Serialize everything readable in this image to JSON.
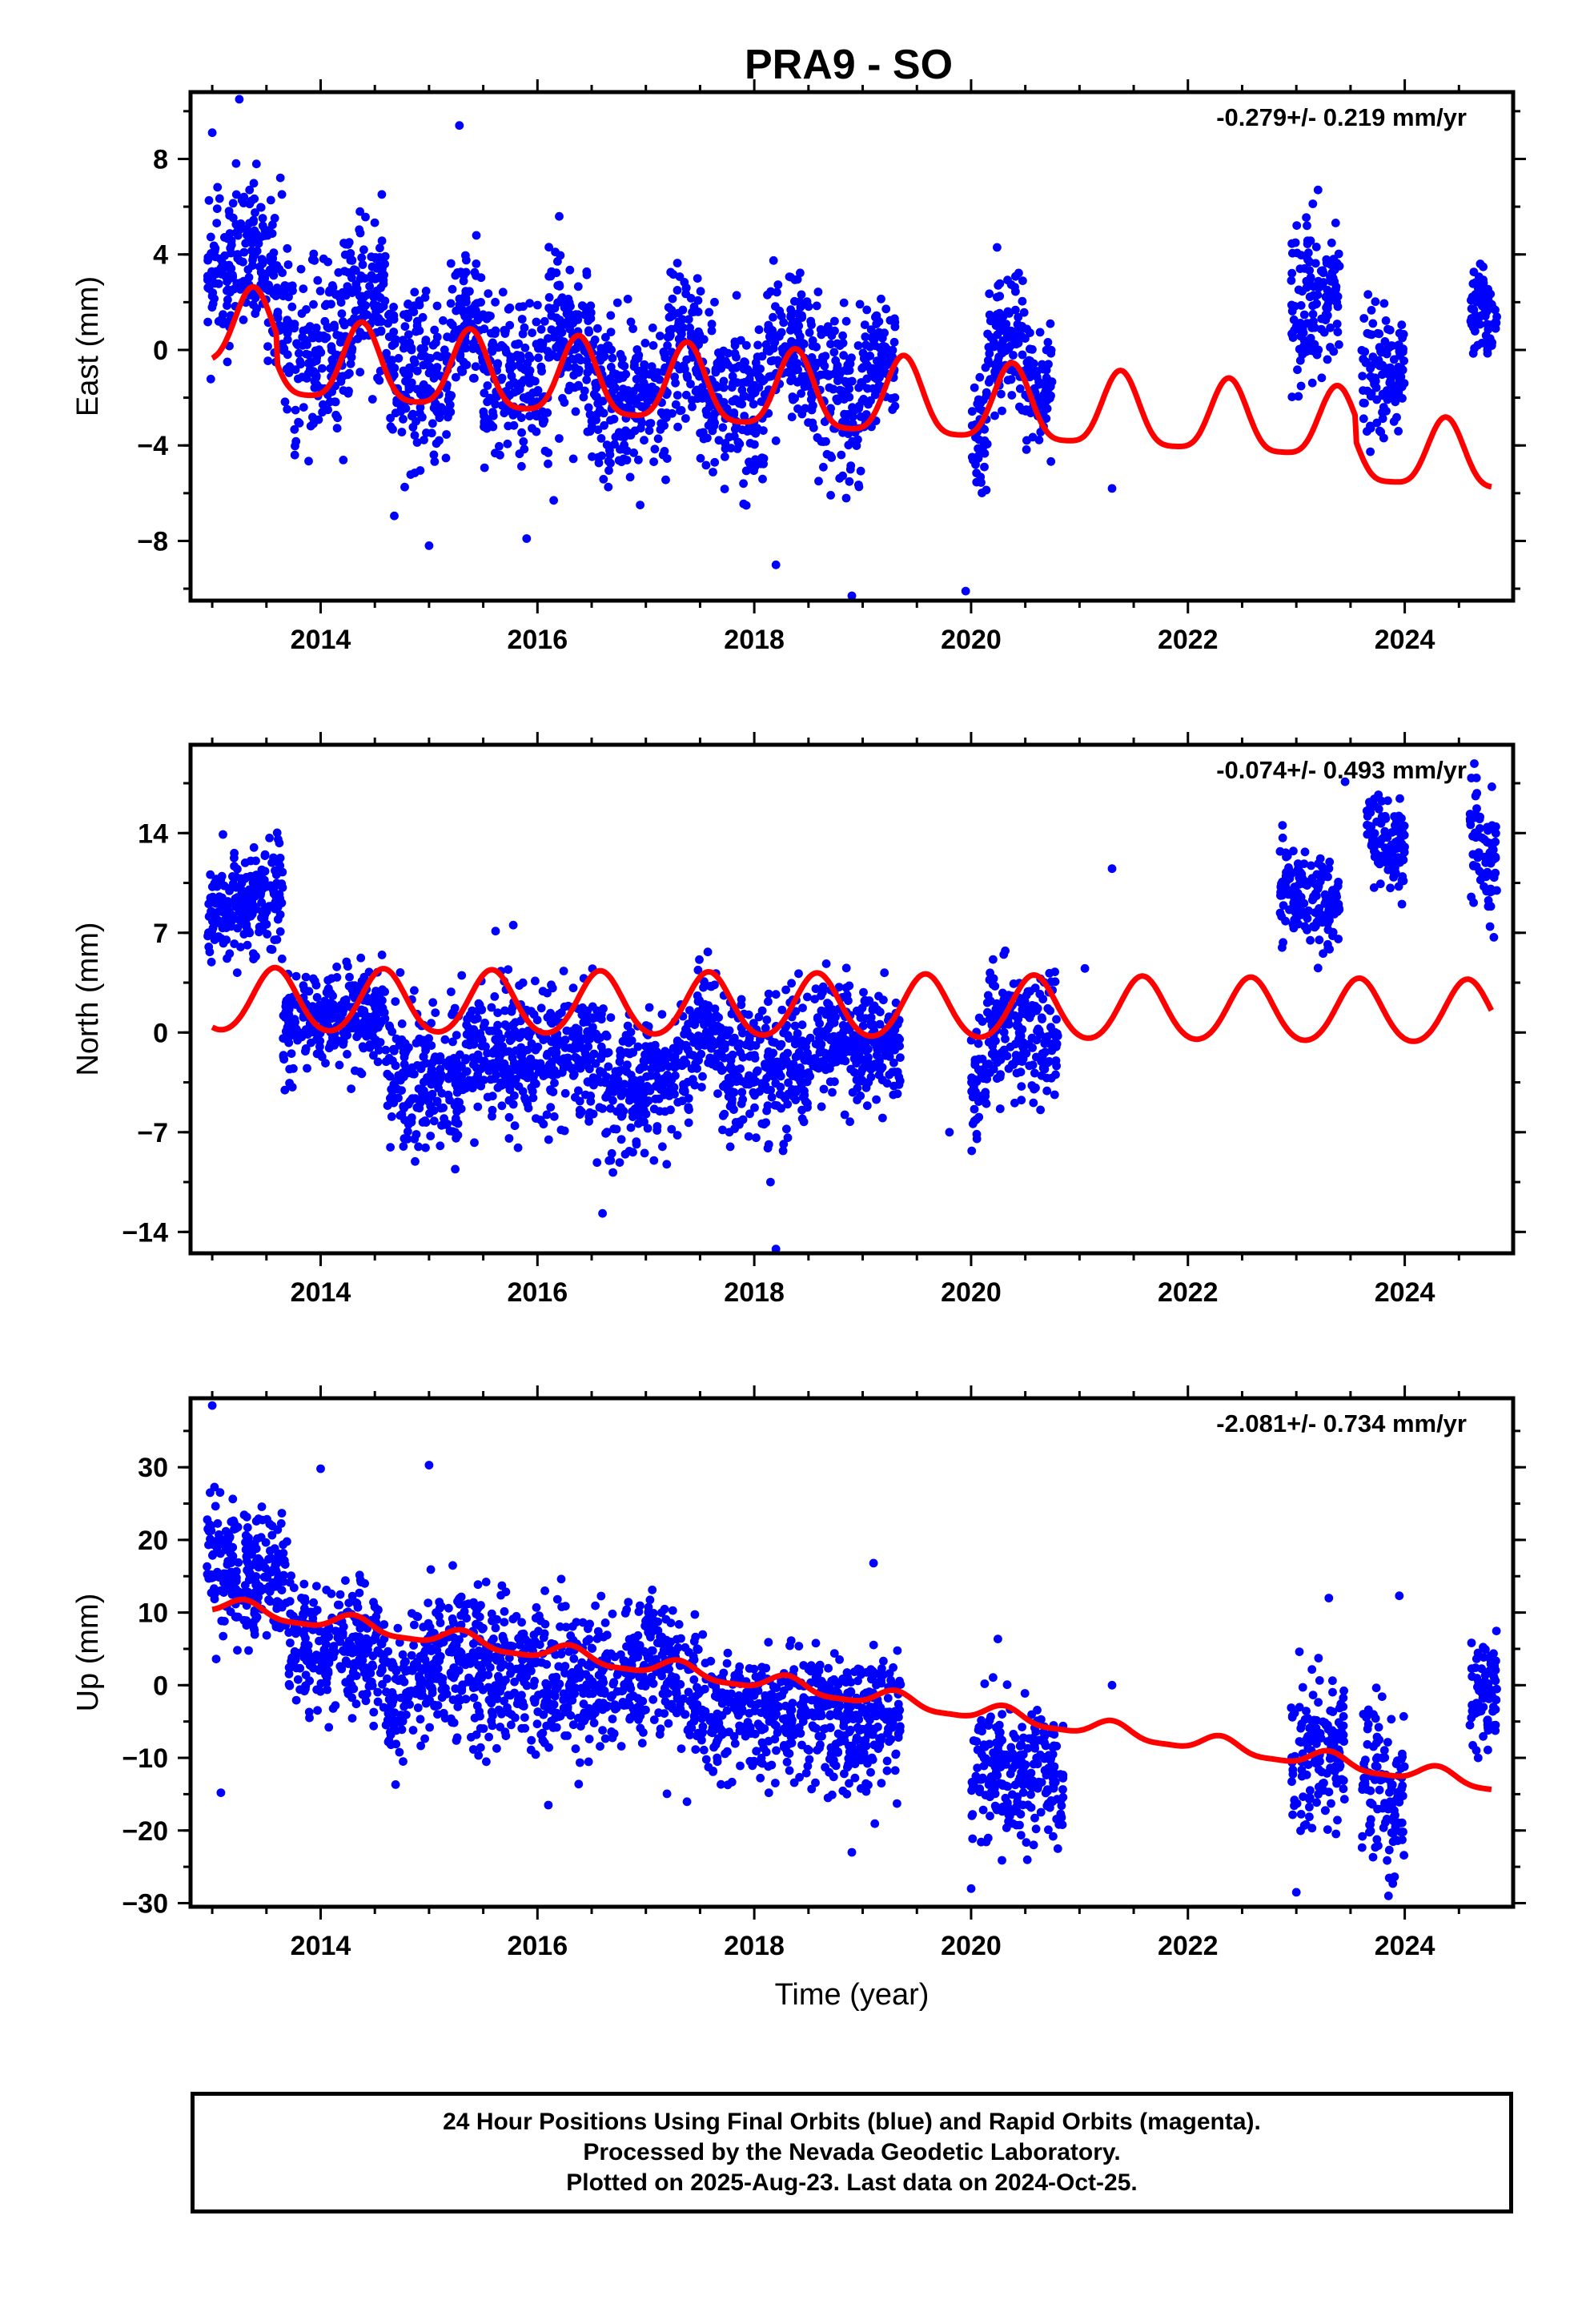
{
  "title": "PRA9 - SO",
  "colors": {
    "data": "#0000ff",
    "model": "#ff0000",
    "axis": "#000000"
  },
  "chart_data": [
    {
      "type": "scatter",
      "xlabel": "",
      "ylabel": "East (mm)",
      "rate_label": "-0.279+/- 0.219 mm/yr",
      "xlim": [
        2012.8,
        2025.0
      ],
      "ylim": [
        -10.5,
        10.8
      ],
      "x_ticks": [
        2014,
        2016,
        2018,
        2020,
        2022,
        2024
      ],
      "y_ticks": [
        -8,
        -4,
        0,
        4,
        8
      ],
      "y_tick_labels": [
        "−8",
        "−4",
        "0",
        "4",
        "8"
      ],
      "grid": false,
      "series": [
        {
          "role": "observations",
          "color": "#0000ff",
          "segments": [
            {
              "x": [
                2012.95,
                2013.45
              ],
              "y": [
                2.8,
                4.2
              ],
              "sd": 1.6
            },
            {
              "x": [
                2013.45,
                2013.75
              ],
              "y": [
                4.2,
                0.5
              ],
              "sd": 1.6
            },
            {
              "x": [
                2013.75,
                2014.3
              ],
              "y": [
                -1.5,
                1.5
              ],
              "sd": 1.8
            },
            {
              "x": [
                2014.3,
                2014.6
              ],
              "y": [
                2.5,
                2.5
              ],
              "sd": 1.5
            },
            {
              "x": [
                2014.6,
                2015.2
              ],
              "y": [
                -1.0,
                -1.5
              ],
              "sd": 1.7
            },
            {
              "x": [
                2015.2,
                2015.5
              ],
              "y": [
                1.5,
                0.5
              ],
              "sd": 1.6
            },
            {
              "x": [
                2015.5,
                2016.1
              ],
              "y": [
                -1.5,
                -1.0
              ],
              "sd": 1.6
            },
            {
              "x": [
                2016.1,
                2016.5
              ],
              "y": [
                1.5,
                0.0
              ],
              "sd": 1.6
            },
            {
              "x": [
                2016.5,
                2017.2
              ],
              "y": [
                -2.0,
                -2.0
              ],
              "sd": 1.7
            },
            {
              "x": [
                2017.2,
                2017.5
              ],
              "y": [
                1.0,
                0.0
              ],
              "sd": 1.5
            },
            {
              "x": [
                2017.5,
                2018.1
              ],
              "y": [
                -2.0,
                -2.5
              ],
              "sd": 1.7
            },
            {
              "x": [
                2018.1,
                2018.5
              ],
              "y": [
                0.5,
                0.0
              ],
              "sd": 1.6
            },
            {
              "x": [
                2018.5,
                2019.0
              ],
              "y": [
                -1.0,
                -2.5
              ],
              "sd": 1.8
            },
            {
              "x": [
                2019.0,
                2019.3
              ],
              "y": [
                -0.5,
                -0.5
              ],
              "sd": 1.4
            },
            {
              "x": [
                2020.0,
                2020.15
              ],
              "y": [
                -4.0,
                -3.0
              ],
              "sd": 1.6
            },
            {
              "x": [
                2020.15,
                2020.5
              ],
              "y": [
                0.0,
                0.5
              ],
              "sd": 1.4
            },
            {
              "x": [
                2020.5,
                2020.75
              ],
              "y": [
                -1.5,
                -1.5
              ],
              "sd": 1.2
            },
            {
              "x": [
                2022.95,
                2023.4
              ],
              "y": [
                1.5,
                2.5
              ],
              "sd": 1.6
            },
            {
              "x": [
                2023.6,
                2024.0
              ],
              "y": [
                -0.5,
                -1.0
              ],
              "sd": 1.5
            },
            {
              "x": [
                2024.6,
                2024.85
              ],
              "y": [
                2.0,
                1.5
              ],
              "sd": 1.0
            }
          ],
          "outliers": [
            [
              2013.25,
              10.5
            ],
            [
              2015.28,
              9.4
            ],
            [
              2013.0,
              9.1
            ],
            [
              2015.0,
              -8.2
            ],
            [
              2018.2,
              -9.0
            ],
            [
              2018.9,
              -10.3
            ],
            [
              2019.95,
              -10.1
            ],
            [
              2021.3,
              -5.8
            ],
            [
              2015.9,
              -7.9
            ],
            [
              2016.15,
              -6.3
            ],
            [
              2023.2,
              6.7
            ]
          ]
        },
        {
          "role": "model",
          "color": "#ff0000",
          "trend": {
            "a": 0.8,
            "b": -0.279,
            "t0": 2013.0
          },
          "annual": [
            {
              "x": 2013.0,
              "amp": 1.6
            },
            {
              "x": 2019.5,
              "amp": 1.6
            },
            {
              "x": 2024.8,
              "amp": 1.4
            }
          ],
          "semiannual_amp": 0.35,
          "phase_peak": 0.38,
          "steps": [
            [
              2013.6,
              -1.2
            ],
            [
              2023.55,
              -1.0
            ]
          ]
        }
      ]
    },
    {
      "type": "scatter",
      "xlabel": "",
      "ylabel": "North (mm)",
      "rate_label": "-0.074+/- 0.493 mm/yr",
      "xlim": [
        2012.8,
        2025.0
      ],
      "ylim": [
        -15.5,
        20.2
      ],
      "x_ticks": [
        2014,
        2016,
        2018,
        2020,
        2022,
        2024
      ],
      "y_ticks": [
        -14,
        -7,
        0,
        7,
        14
      ],
      "y_tick_labels": [
        "−14",
        "−7",
        "0",
        "7",
        "14"
      ],
      "grid": false,
      "series": [
        {
          "role": "observations",
          "color": "#0000ff",
          "segments": [
            {
              "x": [
                2012.95,
                2013.65
              ],
              "y": [
                8.0,
                10.0
              ],
              "sd": 1.8
            },
            {
              "x": [
                2013.65,
                2014.6
              ],
              "y": [
                0.5,
                1.5
              ],
              "sd": 1.7
            },
            {
              "x": [
                2014.6,
                2015.3
              ],
              "y": [
                -3.0,
                -4.0
              ],
              "sd": 2.4
            },
            {
              "x": [
                2015.3,
                2016.6
              ],
              "y": [
                -1.0,
                -2.0
              ],
              "sd": 2.4
            },
            {
              "x": [
                2016.6,
                2017.4
              ],
              "y": [
                -4.0,
                -3.0
              ],
              "sd": 2.4
            },
            {
              "x": [
                2017.4,
                2017.7
              ],
              "y": [
                0.5,
                0.0
              ],
              "sd": 2.0
            },
            {
              "x": [
                2017.7,
                2018.5
              ],
              "y": [
                -3.0,
                -2.0
              ],
              "sd": 2.4
            },
            {
              "x": [
                2018.5,
                2019.35
              ],
              "y": [
                -0.5,
                -1.0
              ],
              "sd": 2.0
            },
            {
              "x": [
                2020.0,
                2020.15
              ],
              "y": [
                -4.0,
                -2.5
              ],
              "sd": 2.2
            },
            {
              "x": [
                2020.15,
                2020.8
              ],
              "y": [
                0.0,
                0.0
              ],
              "sd": 2.2
            },
            {
              "x": [
                2022.85,
                2023.4
              ],
              "y": [
                10.0,
                9.0
              ],
              "sd": 1.6
            },
            {
              "x": [
                2023.65,
                2024.0
              ],
              "y": [
                14.0,
                12.5
              ],
              "sd": 1.5
            },
            {
              "x": [
                2024.6,
                2024.85
              ],
              "y": [
                15.0,
                11.0
              ],
              "sd": 2.2
            }
          ],
          "outliers": [
            [
              2016.6,
              -12.7
            ],
            [
              2018.2,
              -15.2
            ],
            [
              2018.15,
              -10.5
            ],
            [
              2021.3,
              11.5
            ],
            [
              2021.05,
              4.5
            ],
            [
              2023.45,
              17.6
            ],
            [
              2019.8,
              -7.0
            ]
          ]
        },
        {
          "role": "model",
          "color": "#ff0000",
          "trend": {
            "a": 2.2,
            "b": -0.074,
            "t0": 2013.0
          },
          "annual": [
            {
              "x": 2013.0,
              "amp": 2.2
            },
            {
              "x": 2024.8,
              "amp": 2.2
            }
          ],
          "semiannual_amp": 0.2,
          "phase_peak": 0.58,
          "steps": []
        }
      ]
    },
    {
      "type": "scatter",
      "xlabel": "Time (year)",
      "ylabel": "Up (mm)",
      "rate_label": "-2.081+/- 0.734 mm/yr",
      "xlim": [
        2012.8,
        2025.0
      ],
      "ylim": [
        -30.5,
        39.5
      ],
      "x_ticks": [
        2014,
        2016,
        2018,
        2020,
        2022,
        2024
      ],
      "y_ticks": [
        -30,
        -20,
        -10,
        0,
        10,
        20,
        30
      ],
      "y_tick_labels": [
        "−30",
        "−20",
        "−10",
        "0",
        "10",
        "20",
        "30"
      ],
      "grid": false,
      "series": [
        {
          "role": "observations",
          "color": "#0000ff",
          "segments": [
            {
              "x": [
                2012.95,
                2013.7
              ],
              "y": [
                17.0,
                14.0
              ],
              "sd": 4.5
            },
            {
              "x": [
                2013.7,
                2014.6
              ],
              "y": [
                6.0,
                5.0
              ],
              "sd": 4.5
            },
            {
              "x": [
                2014.6,
                2015.0
              ],
              "y": [
                -3.0,
                3.0
              ],
              "sd": 4.5
            },
            {
              "x": [
                2015.0,
                2016.5
              ],
              "y": [
                4.0,
                0.0
              ],
              "sd": 5.0
            },
            {
              "x": [
                2016.5,
                2017.0
              ],
              "y": [
                0.0,
                2.0
              ],
              "sd": 4.5
            },
            {
              "x": [
                2017.0,
                2017.5
              ],
              "y": [
                6.0,
                -3.0
              ],
              "sd": 5.0
            },
            {
              "x": [
                2017.5,
                2019.35
              ],
              "y": [
                -4.0,
                -5.0
              ],
              "sd": 4.5
            },
            {
              "x": [
                2020.0,
                2020.6
              ],
              "y": [
                -12.0,
                -12.0
              ],
              "sd": 5.0
            },
            {
              "x": [
                2020.6,
                2020.85
              ],
              "y": [
                -10.0,
                -15.0
              ],
              "sd": 4.5
            },
            {
              "x": [
                2022.95,
                2023.45
              ],
              "y": [
                -11.0,
                -8.0
              ],
              "sd": 4.5
            },
            {
              "x": [
                2023.6,
                2024.0
              ],
              "y": [
                -13.0,
                -17.0
              ],
              "sd": 5.0
            },
            {
              "x": [
                2024.6,
                2024.85
              ],
              "y": [
                -2.0,
                -1.0
              ],
              "sd": 3.5
            }
          ],
          "outliers": [
            [
              2013.0,
              38.5
            ],
            [
              2013.08,
              -14.8
            ],
            [
              2015.0,
              30.3
            ],
            [
              2014.0,
              29.8
            ],
            [
              2023.95,
              12.3
            ],
            [
              2023.3,
              12.0
            ],
            [
              2021.3,
              0.0
            ],
            [
              2020.0,
              -28.0
            ],
            [
              2023.0,
              -28.5
            ],
            [
              2023.85,
              -29.0
            ],
            [
              2019.1,
              16.8
            ],
            [
              2016.1,
              -16.5
            ],
            [
              2018.9,
              -23.0
            ],
            [
              2020.8,
              -22.5
            ]
          ]
        },
        {
          "role": "model",
          "color": "#ff0000",
          "trend": {
            "a": 11.0,
            "b": -2.081,
            "t0": 2013.0
          },
          "annual": [
            {
              "x": 2013.0,
              "amp": 1.1
            },
            {
              "x": 2024.8,
              "amp": 1.1
            }
          ],
          "semiannual_amp": 0.3,
          "phase_peak": 0.3,
          "steps": []
        }
      ]
    }
  ],
  "footer": {
    "line1": "24 Hour Positions Using Final Orbits (blue) and Rapid Orbits (magenta).",
    "line2": "Processed by the Nevada Geodetic Laboratory.",
    "line3": "Plotted on 2025-Aug-23. Last data on 2024-Oct-25."
  }
}
